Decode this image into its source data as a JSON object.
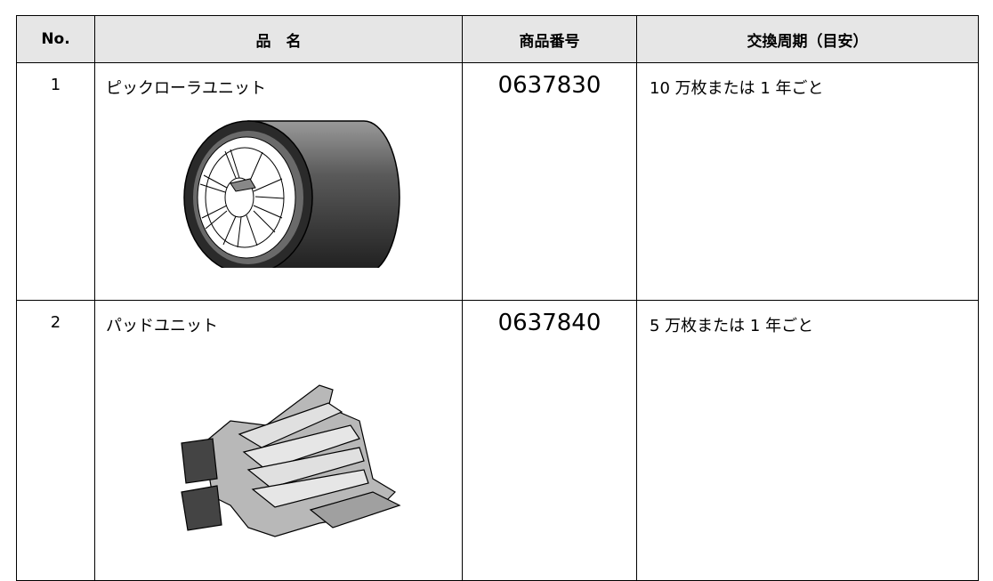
{
  "table": {
    "header": [
      "No.",
      "品　名",
      "商品番号",
      "交換周期（目安）"
    ],
    "rows": [
      [
        "1",
        "ピックローラユニット",
        "0637830",
        "10 万枚または 1 年ごと"
      ],
      [
        "2",
        "パッドユニット",
        "0637840",
        "5 万枚または 1 年ごと"
      ]
    ]
  }
}
